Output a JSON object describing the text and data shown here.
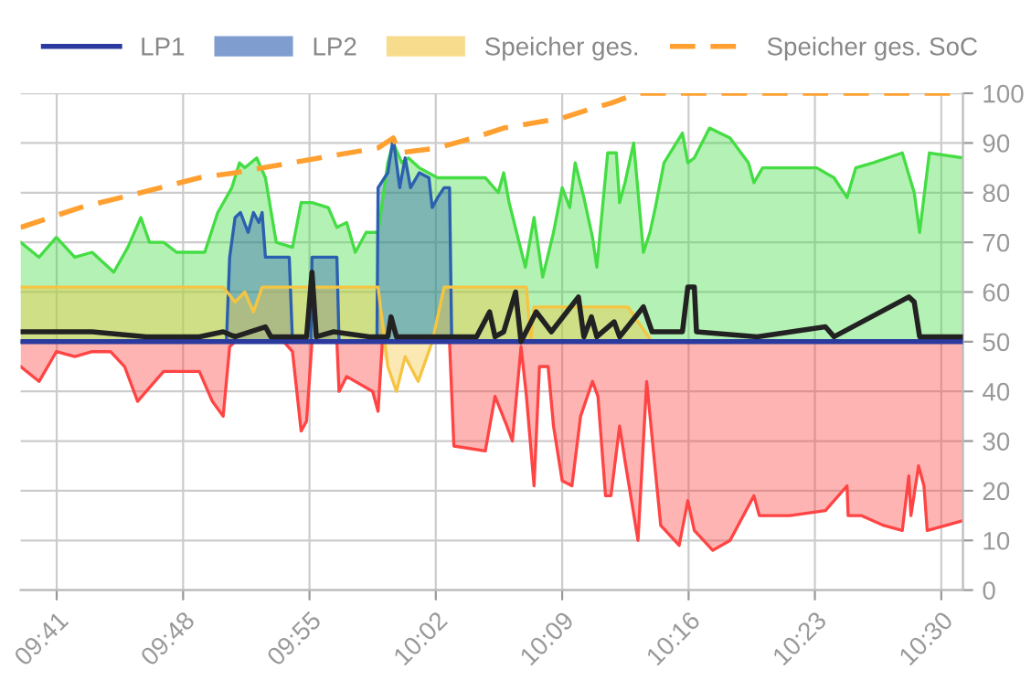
{
  "chart_data": {
    "type": "line",
    "xlim": [
      9.65,
      10.52
    ],
    "ylim": [
      0,
      100
    ],
    "xticks": [
      {
        "value": 9.6833,
        "label": "09:41"
      },
      {
        "value": 9.8,
        "label": "09:48"
      },
      {
        "value": 9.9167,
        "label": "09:55"
      },
      {
        "value": 10.0333,
        "label": "10:02"
      },
      {
        "value": 10.15,
        "label": "10:09"
      },
      {
        "value": 10.2667,
        "label": "10:16"
      },
      {
        "value": 10.3833,
        "label": "10:23"
      },
      {
        "value": 10.5,
        "label": "10:30"
      }
    ],
    "yticks": [
      0,
      10,
      20,
      30,
      40,
      50,
      60,
      70,
      80,
      90,
      100
    ],
    "grid": true,
    "legend": "top",
    "series": [
      {
        "color": "#44dd44",
        "x": [
          9.65,
          9.667,
          9.683,
          9.7,
          9.716,
          9.736,
          9.749,
          9.761,
          9.769,
          9.782,
          9.794,
          9.82,
          9.832,
          9.845,
          9.852,
          9.857,
          9.868,
          9.876,
          9.886,
          9.901,
          9.909,
          9.919,
          9.934,
          9.942,
          9.951,
          9.959,
          9.969,
          9.98,
          9.989,
          9.994,
          10.002,
          10.008,
          10.018,
          10.035,
          10.058,
          10.079,
          10.091,
          10.096,
          10.101,
          10.116,
          10.124,
          10.132,
          10.142,
          10.15,
          10.157,
          10.162,
          10.17,
          10.178,
          10.182,
          10.192,
          10.2,
          10.203,
          10.208,
          10.216,
          10.225,
          10.231,
          10.236,
          10.244,
          10.261,
          10.266,
          10.272,
          10.286,
          10.305,
          10.322,
          10.327,
          10.335,
          10.36,
          10.385,
          10.401,
          10.413,
          10.421,
          10.437,
          10.464,
          10.475,
          10.48,
          10.489,
          10.52
        ],
        "values": [
          70,
          67,
          71,
          67,
          68,
          64,
          69,
          75,
          70,
          70,
          68,
          68,
          76,
          81,
          86,
          85,
          87,
          83,
          70,
          69,
          78,
          78,
          77,
          73,
          74,
          68,
          72,
          72,
          86,
          90,
          86,
          87,
          85,
          83,
          83,
          83,
          80,
          84,
          78,
          65,
          75,
          63,
          72,
          81,
          77,
          86,
          79,
          71,
          65,
          88,
          88,
          78,
          82,
          90,
          68,
          72,
          77,
          86,
          92,
          86,
          87,
          93,
          91,
          86,
          82,
          85,
          85,
          85,
          83,
          79,
          85,
          86,
          88,
          80,
          72,
          88,
          87
        ],
        "upper": [
          70,
          67,
          71,
          67,
          68,
          64,
          69,
          75,
          70,
          70,
          68,
          68,
          76,
          81,
          86,
          85,
          87,
          83,
          70,
          69,
          78,
          78,
          77,
          73,
          74,
          68,
          72,
          72,
          86,
          90,
          86,
          87,
          85,
          83,
          83,
          83,
          80,
          84,
          78,
          65,
          75,
          63,
          72,
          81,
          77,
          86,
          79,
          71,
          65,
          88,
          88,
          78,
          82,
          90,
          68,
          72,
          77,
          86,
          92,
          86,
          87,
          93,
          91,
          86,
          82,
          85,
          85,
          85,
          83,
          79,
          85,
          86,
          88,
          80,
          72,
          88,
          87
        ],
        "lower": [
          50,
          50,
          50,
          50,
          50,
          50,
          50,
          50,
          50,
          50,
          50,
          50,
          50,
          50,
          50,
          50,
          50,
          50,
          50,
          50,
          50,
          50,
          50,
          50,
          50,
          50,
          50,
          50,
          50,
          50,
          50,
          50,
          50,
          50,
          50,
          50,
          50,
          50,
          50,
          50,
          50,
          50,
          50,
          50,
          50,
          50,
          50,
          50,
          50,
          50,
          50,
          50,
          50,
          50,
          50,
          50,
          50,
          50,
          50,
          50,
          50,
          50,
          50,
          50,
          50,
          50,
          50,
          50,
          50,
          50,
          50,
          50,
          50,
          50,
          50,
          50,
          50
        ]
      },
      {
        "color": "#ff4444",
        "x": [
          9.65,
          9.667,
          9.683,
          9.7,
          9.716,
          9.733,
          9.746,
          9.758,
          9.766,
          9.782,
          9.815,
          9.827,
          9.837,
          9.843,
          9.848,
          9.893,
          9.901,
          9.909,
          9.914,
          9.919,
          9.942,
          9.944,
          9.951,
          9.959,
          9.975,
          9.98,
          9.984,
          10.046,
          10.05,
          10.079,
          10.088,
          10.099,
          10.104,
          10.112,
          10.117,
          10.124,
          10.129,
          10.137,
          10.142,
          10.15,
          10.159,
          10.167,
          10.178,
          10.183,
          10.19,
          10.195,
          10.203,
          10.208,
          10.22,
          10.228,
          10.236,
          10.241,
          10.258,
          10.266,
          10.272,
          10.289,
          10.305,
          10.327,
          10.332,
          10.36,
          10.393,
          10.413,
          10.414,
          10.426,
          10.447,
          10.464,
          10.47,
          10.472,
          10.479,
          10.484,
          10.487,
          10.52
        ],
        "values": [
          45,
          42,
          48,
          47,
          48,
          48,
          45,
          38,
          40,
          44,
          44,
          38,
          35,
          49,
          50,
          50,
          48,
          32,
          34,
          50,
          50,
          40,
          43,
          42,
          40,
          36,
          50,
          50,
          29,
          28,
          39,
          33,
          30,
          49,
          39,
          21,
          45,
          45,
          33,
          22,
          21,
          35,
          42,
          39,
          19,
          19,
          33,
          26,
          10,
          42,
          24,
          13,
          9,
          18,
          12,
          8,
          10,
          19,
          15,
          15,
          16,
          21,
          15,
          15,
          13,
          12,
          23,
          15,
          25,
          21,
          12,
          14
        ],
        "lower": [
          45,
          42,
          48,
          47,
          48,
          48,
          45,
          38,
          40,
          44,
          44,
          38,
          35,
          49,
          50,
          50,
          48,
          32,
          34,
          50,
          50,
          40,
          43,
          42,
          40,
          36,
          50,
          50,
          29,
          28,
          39,
          33,
          30,
          49,
          39,
          21,
          45,
          45,
          33,
          22,
          21,
          35,
          42,
          39,
          19,
          19,
          33,
          26,
          10,
          42,
          24,
          13,
          9,
          18,
          12,
          8,
          10,
          19,
          15,
          15,
          16,
          21,
          15,
          15,
          13,
          12,
          23,
          15,
          25,
          21,
          12,
          14
        ],
        "upper": [
          50,
          50,
          50,
          50,
          50,
          50,
          50,
          50,
          50,
          50,
          50,
          50,
          50,
          50,
          50,
          50,
          50,
          50,
          50,
          50,
          50,
          50,
          50,
          50,
          50,
          50,
          50,
          50,
          50,
          50,
          50,
          50,
          50,
          50,
          50,
          50,
          50,
          50,
          50,
          50,
          50,
          50,
          50,
          50,
          50,
          50,
          50,
          50,
          50,
          50,
          50,
          50,
          50,
          50,
          50,
          50,
          50,
          50,
          50,
          50,
          50,
          50,
          50,
          50,
          50,
          50,
          50,
          50,
          50,
          50,
          50,
          50
        ]
      },
      {
        "name": "LP1",
        "color": "#2a3a9e",
        "x": [
          9.65,
          9.8,
          10.0,
          10.2,
          10.4,
          10.52
        ],
        "values": [
          50,
          50,
          50,
          50,
          50,
          50
        ]
      },
      {
        "name": "LP2",
        "color": "#2b5fb0",
        "x": [
          9.65,
          9.84,
          9.843,
          9.848,
          9.853,
          9.86,
          9.865,
          9.87,
          9.873,
          9.876,
          9.898,
          9.901,
          9.918,
          9.919,
          9.942,
          9.944,
          9.979,
          9.98,
          9.989,
          9.994,
          10.0,
          10.005,
          10.01,
          10.018,
          10.027,
          10.03,
          10.035,
          10.041,
          10.046,
          10.048,
          10.52
        ],
        "values": [
          50,
          50,
          67,
          75,
          76,
          72,
          76,
          74,
          76,
          67,
          67,
          50,
          50,
          67,
          67,
          50,
          50,
          81,
          84,
          91,
          81,
          87,
          81,
          84,
          83,
          77,
          79,
          81,
          81,
          50,
          50
        ],
        "upper": [
          50,
          50,
          67,
          75,
          76,
          72,
          76,
          74,
          76,
          67,
          67,
          50,
          50,
          67,
          67,
          50,
          50,
          81,
          84,
          91,
          81,
          87,
          81,
          84,
          83,
          77,
          79,
          81,
          81,
          50,
          50
        ],
        "lower": [
          50,
          50,
          50,
          50,
          50,
          50,
          50,
          50,
          50,
          50,
          50,
          50,
          50,
          50,
          50,
          50,
          50,
          50,
          50,
          50,
          50,
          50,
          50,
          50,
          50,
          50,
          50,
          50,
          50,
          50,
          50
        ]
      },
      {
        "name": "Speicher ges.",
        "color": "#f5c542",
        "x": [
          9.65,
          9.837,
          9.848,
          9.857,
          9.865,
          9.873,
          9.98,
          9.989,
          9.997,
          10.005,
          10.017,
          10.03,
          10.041,
          10.117,
          10.121,
          10.124,
          10.211,
          10.22,
          10.233,
          10.52
        ],
        "values": [
          61,
          61,
          58,
          60,
          56,
          61,
          61,
          45,
          40,
          47,
          42,
          50,
          61,
          61,
          50,
          57,
          57,
          54,
          50,
          50
        ],
        "upper": [
          61,
          61,
          58,
          60,
          56,
          61,
          61,
          50,
          50,
          50,
          50,
          50,
          61,
          61,
          50,
          57,
          57,
          54,
          50,
          50
        ],
        "lower": [
          50,
          50,
          50,
          50,
          50,
          50,
          50,
          45,
          40,
          47,
          42,
          50,
          50,
          50,
          50,
          50,
          50,
          50,
          50,
          50
        ]
      },
      {
        "color": "#222222",
        "x": [
          9.65,
          9.683,
          9.716,
          9.766,
          9.815,
          9.837,
          9.848,
          9.876,
          9.881,
          9.914,
          9.919,
          9.923,
          9.939,
          9.972,
          9.989,
          9.992,
          9.997,
          10.013,
          10.055,
          10.071,
          10.083,
          10.088,
          10.096,
          10.107,
          10.112,
          10.126,
          10.14,
          10.165,
          10.17,
          10.177,
          10.182,
          10.198,
          10.203,
          10.225,
          10.233,
          10.261,
          10.266,
          10.272,
          10.274,
          10.33,
          10.393,
          10.401,
          10.47,
          10.475,
          10.48,
          10.487,
          10.52
        ],
        "values": [
          52,
          52,
          52,
          51,
          51,
          52,
          51,
          53,
          51,
          51,
          64,
          51,
          52,
          51,
          51,
          55,
          51,
          51,
          51,
          51,
          56,
          51,
          52,
          60,
          50,
          56,
          52,
          59,
          51,
          55,
          51,
          54,
          51,
          57,
          52,
          52,
          61,
          61,
          52,
          51,
          53,
          51,
          59,
          58,
          51,
          51,
          51
        ]
      },
      {
        "name": "Speicher ges. SoC",
        "line_style": "dashed",
        "color": "#ffa030",
        "x": [
          9.65,
          9.705,
          9.761,
          9.815,
          9.848,
          9.926,
          9.98,
          9.994,
          10.0,
          10.035,
          10.068,
          10.096,
          10.15,
          10.178,
          10.195,
          10.22,
          10.52
        ],
        "values": [
          73,
          77,
          80,
          83,
          84,
          87,
          89,
          91,
          88,
          89,
          91,
          93,
          95,
          97,
          98,
          100,
          100
        ]
      }
    ]
  }
}
